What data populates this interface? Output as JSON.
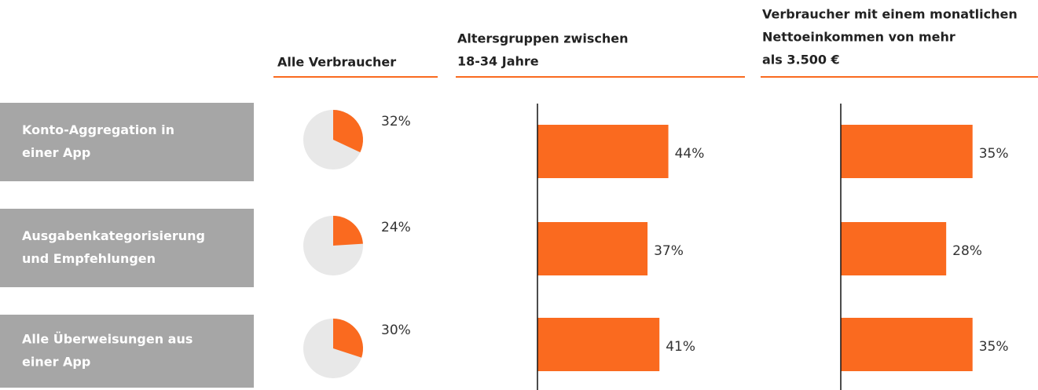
{
  "chart_data": [
    {
      "type": "pie",
      "title": [
        "Alle Verbraucher"
      ],
      "categories": [
        [
          "Konto-Aggregation in",
          "einer App"
        ],
        [
          "Ausgabenkategorisierung",
          "und Empfehlungen"
        ],
        [
          "Alle Überweisungen aus",
          "einer App"
        ]
      ],
      "values": [
        32,
        24,
        30
      ],
      "value_labels": [
        "32%",
        "24%",
        "30%"
      ],
      "color": "#fa6a1f",
      "rest_color": "#e8e8e8"
    },
    {
      "type": "bar",
      "title": [
        "Altersgruppen zwischen",
        "18-34 Jahre"
      ],
      "values": [
        44,
        37,
        41
      ],
      "value_labels": [
        "44%",
        "37%",
        "41%"
      ],
      "color": "#fa6a1f",
      "xlim": [
        0,
        70
      ]
    },
    {
      "type": "bar",
      "title": [
        "Verbraucher mit einem monatlichen",
        "Nettoeinkommen von mehr",
        "als 3.500 €"
      ],
      "values": [
        35,
        28,
        35
      ],
      "value_labels": [
        "35%",
        "28%",
        "35%"
      ],
      "color": "#fa6a1f",
      "xlim": [
        0,
        48
      ]
    }
  ]
}
